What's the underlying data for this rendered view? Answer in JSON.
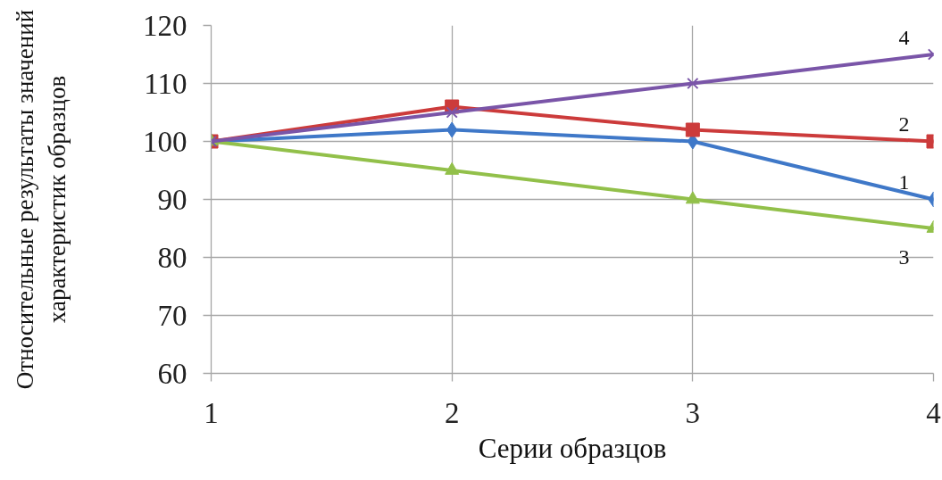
{
  "chart_data": {
    "type": "line",
    "xlabel": "Серии образцов",
    "ylabel": "Относительные результаты значений характеристик образцов",
    "x": [
      1,
      2,
      3,
      4
    ],
    "xlim": [
      1,
      4
    ],
    "xticks": [
      1,
      2,
      3,
      4
    ],
    "ylim": [
      60,
      120
    ],
    "yticks": [
      60,
      70,
      80,
      90,
      100,
      110,
      120
    ],
    "grid": true,
    "line_style": "solid",
    "series": [
      {
        "name": "1",
        "color": "#3f78c8",
        "marker": "diamond",
        "values": [
          100,
          102,
          100,
          90
        ]
      },
      {
        "name": "2",
        "color": "#cc3b3b",
        "marker": "square",
        "values": [
          100,
          106,
          102,
          100
        ]
      },
      {
        "name": "3",
        "color": "#92c04a",
        "marker": "triangle",
        "values": [
          100,
          95,
          90,
          85
        ]
      },
      {
        "name": "4",
        "color": "#7a55a8",
        "marker": "cross",
        "values": [
          100,
          105,
          110,
          115
        ]
      }
    ]
  }
}
